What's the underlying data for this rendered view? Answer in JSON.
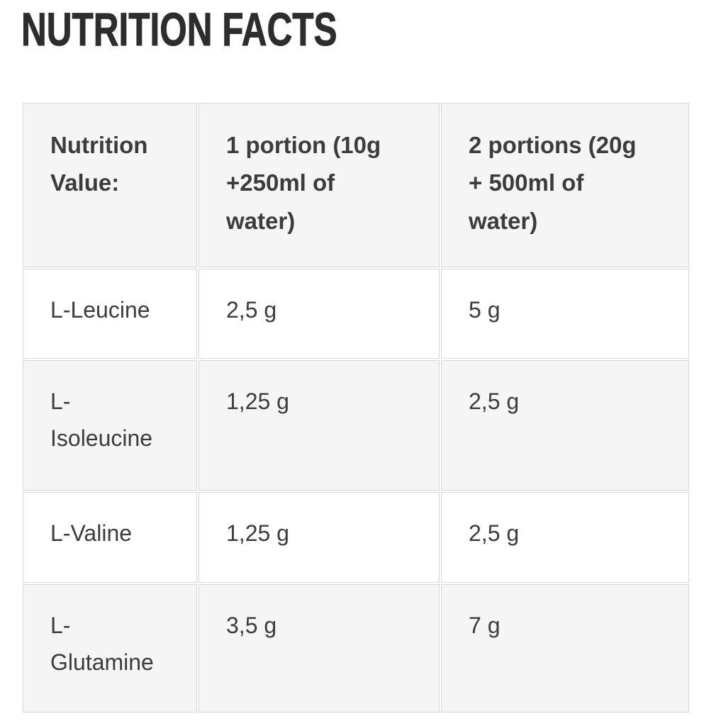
{
  "page": {
    "title": "NUTRITION FACTS"
  },
  "table": {
    "headers": [
      "Nutrition\nValue:",
      "1 portion (10g\n+250ml of\nwater)",
      "2 portions (20g\n+ 500ml of\nwater)"
    ],
    "rows": [
      {
        "label": "L-Leucine",
        "portion_1": "2,5 g",
        "portion_2": "5 g"
      },
      {
        "label": "L-\nIsoleucine",
        "portion_1": "1,25 g",
        "portion_2": "2,5 g"
      },
      {
        "label": "L-Valine",
        "portion_1": "1,25 g",
        "portion_2": "2,5 g"
      },
      {
        "label": "L-\nGlutamine",
        "portion_1": "3,5 g",
        "portion_2": "7 g"
      }
    ]
  },
  "colors": {
    "page_bg": "#ffffff",
    "title_text": "#2d2d2d",
    "body_text": "#3c3c3c",
    "striped_cell_bg": "#f5f5f5",
    "cell_border": "#d8d8d8"
  }
}
